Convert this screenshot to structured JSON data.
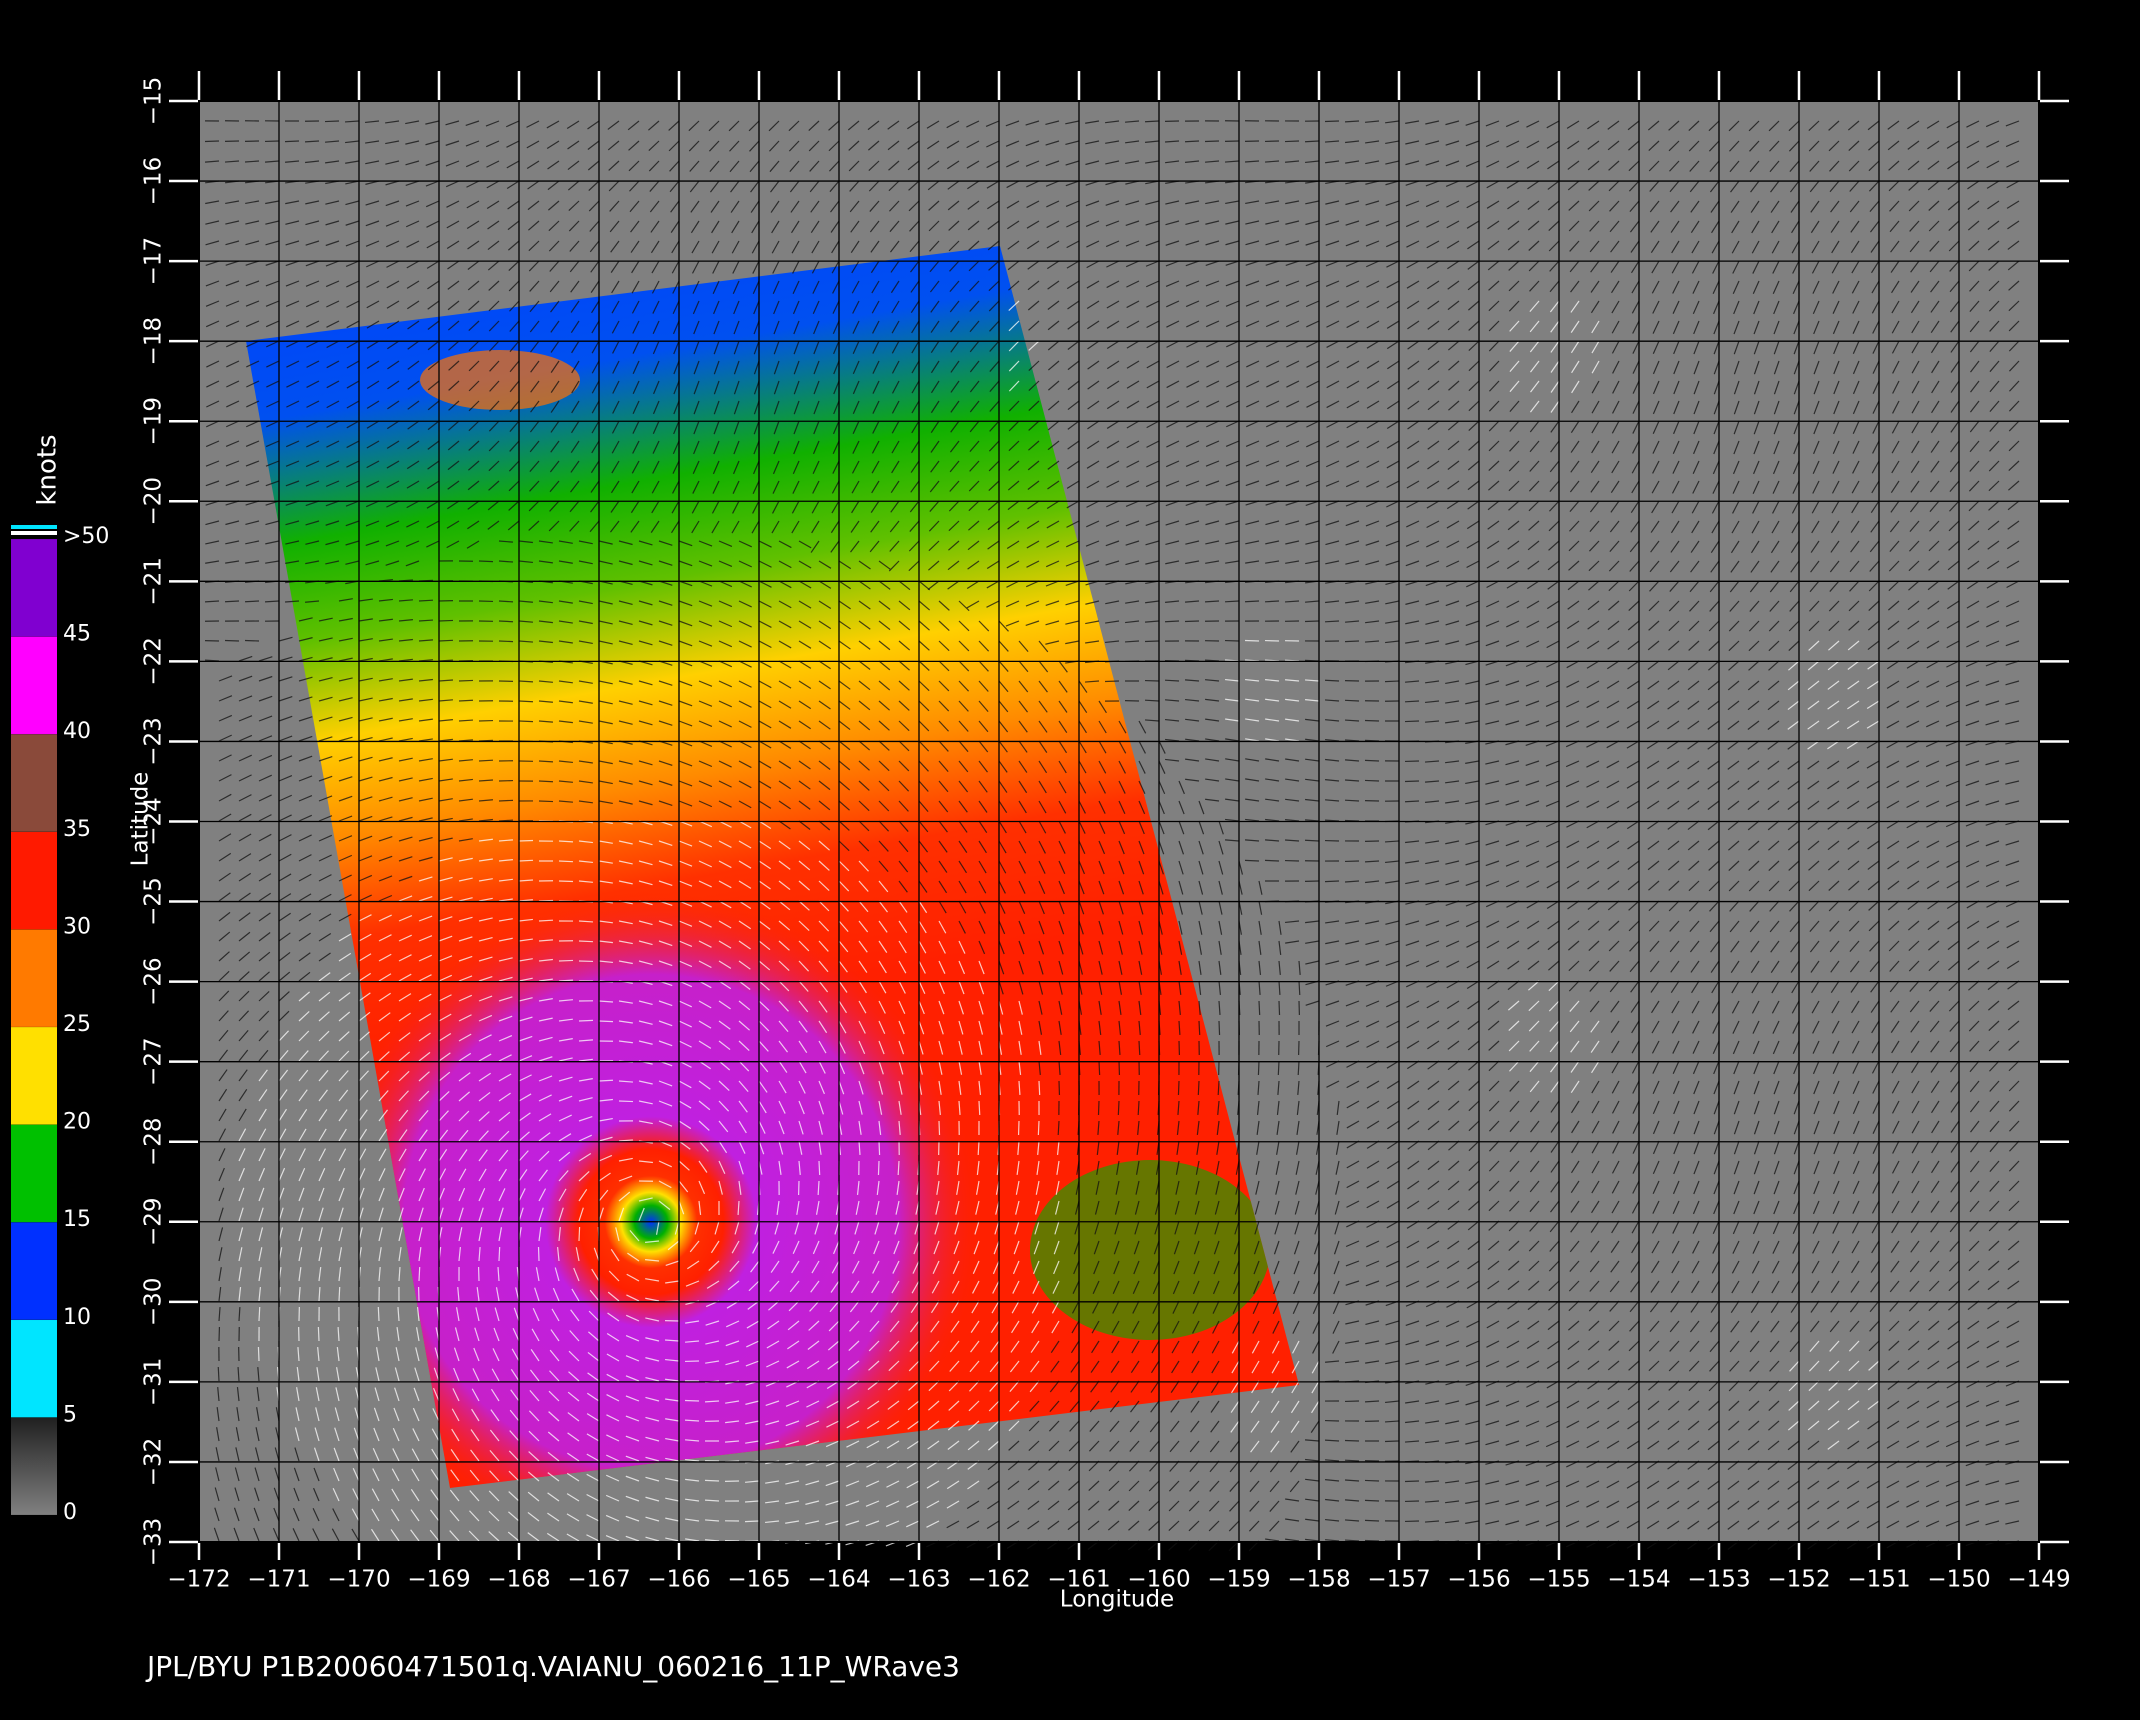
{
  "chart_data": {
    "type": "map",
    "xlabel": "Longitude",
    "ylabel": "Latitude",
    "footer": "JPL/BYU  P1B20060471501q.VAIANU_060216_11P_WRave3",
    "xlim": [
      -172,
      -149
    ],
    "ylim": [
      -33,
      -15
    ],
    "xticks": [
      {
        "value": -172,
        "label": "−172"
      },
      {
        "value": -171,
        "label": "−171"
      },
      {
        "value": -170,
        "label": "−170"
      },
      {
        "value": -169,
        "label": "−169"
      },
      {
        "value": -168,
        "label": "−168"
      },
      {
        "value": -167,
        "label": "−167"
      },
      {
        "value": -166,
        "label": "−166"
      },
      {
        "value": -165,
        "label": "−165"
      },
      {
        "value": -164,
        "label": "−164"
      },
      {
        "value": -163,
        "label": "−163"
      },
      {
        "value": -162,
        "label": "−162"
      },
      {
        "value": -161,
        "label": "−161"
      },
      {
        "value": -160,
        "label": "−160"
      },
      {
        "value": -159,
        "label": "−159"
      },
      {
        "value": -158,
        "label": "−158"
      },
      {
        "value": -157,
        "label": "−157"
      },
      {
        "value": -156,
        "label": "−156"
      },
      {
        "value": -155,
        "label": "−155"
      },
      {
        "value": -154,
        "label": "−154"
      },
      {
        "value": -153,
        "label": "−153"
      },
      {
        "value": -152,
        "label": "−152"
      },
      {
        "value": -151,
        "label": "−151"
      },
      {
        "value": -150,
        "label": "−150"
      },
      {
        "value": -149,
        "label": "−149"
      }
    ],
    "yticks": [
      {
        "value": -33,
        "label": "−33"
      },
      {
        "value": -32,
        "label": "−32"
      },
      {
        "value": -31,
        "label": "−31"
      },
      {
        "value": -30,
        "label": "−30"
      },
      {
        "value": -29,
        "label": "−29"
      },
      {
        "value": -28,
        "label": "−28"
      },
      {
        "value": -27,
        "label": "−27"
      },
      {
        "value": -26,
        "label": "−26"
      },
      {
        "value": -25,
        "label": "−25"
      },
      {
        "value": -24,
        "label": "−24"
      },
      {
        "value": -23,
        "label": "−23"
      },
      {
        "value": -22,
        "label": "−22"
      },
      {
        "value": -21,
        "label": "−21"
      },
      {
        "value": -20,
        "label": "−20"
      },
      {
        "value": -19,
        "label": "−19"
      },
      {
        "value": -18,
        "label": "−18"
      },
      {
        "value": -17,
        "label": "−17"
      },
      {
        "value": -16,
        "label": "−16"
      },
      {
        "value": -15,
        "label": "−15"
      }
    ],
    "grid": true,
    "colorbar": {
      "label": "knots",
      "range": [
        0,
        50
      ],
      "ticks": [
        0,
        5,
        10,
        15,
        20,
        25,
        30,
        35,
        40,
        45,
        {
          "value": 50,
          "label": ">50"
        }
      ],
      "colors": [
        "#808080",
        "#00e5ff",
        "#0030ff",
        "#00c000",
        "#ffe000",
        "#ff7a00",
        "#ff1a00",
        "#8a4a3a",
        "#ff00ff",
        "#8000d0"
      ]
    }
  }
}
